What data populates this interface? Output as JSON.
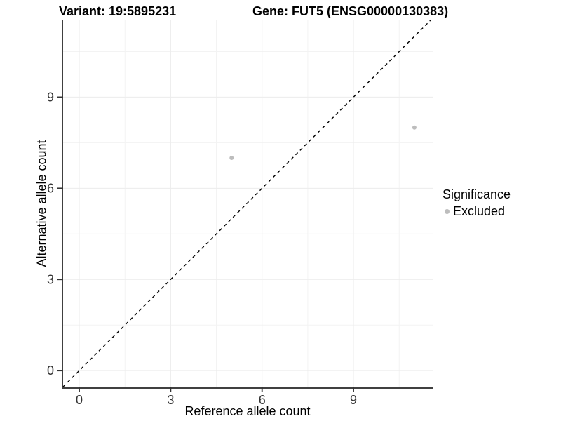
{
  "header": {
    "variant_title": "Variant: 19:5895231",
    "gene_title": "Gene: FUT5 (ENSG00000130383)"
  },
  "legend": {
    "title": "Significance",
    "items": [
      {
        "label": "Excluded",
        "color": "#bdbdbd",
        "marker": "circle-icon"
      }
    ]
  },
  "chart_data": {
    "type": "scatter",
    "title": "Variant: 19:5895231",
    "subtitle": "Gene: FUT5 (ENSG00000130383)",
    "xlabel": "Reference allele count",
    "ylabel": "Alternative allele count",
    "xlim": [
      -0.53,
      11.6
    ],
    "ylim": [
      -0.55,
      11.55
    ],
    "x_ticks": [
      0,
      3,
      6,
      9
    ],
    "y_ticks": [
      0,
      3,
      6,
      9
    ],
    "x_minor_ticks": [
      1.5,
      4.5,
      7.5,
      10.5
    ],
    "y_minor_ticks": [
      1.5,
      4.5,
      7.5,
      10.5
    ],
    "grid": true,
    "legend_position": "right",
    "series": [
      {
        "name": "Excluded",
        "color": "#bdbdbd",
        "point_radius": 3,
        "points": [
          [
            5,
            7
          ],
          [
            11,
            8
          ]
        ]
      }
    ],
    "reference_line": {
      "type": "identity",
      "style": "dashed",
      "color": "#000000",
      "from": -0.53,
      "to": 11.55
    }
  },
  "style": {
    "axis_line_color": "#404040",
    "tick_mark_color": "#333333",
    "tick_label_color": "#333333",
    "grid_major_color": "#ececec",
    "grid_minor_color": "#f3f3f3",
    "background_color": "#ffffff"
  }
}
